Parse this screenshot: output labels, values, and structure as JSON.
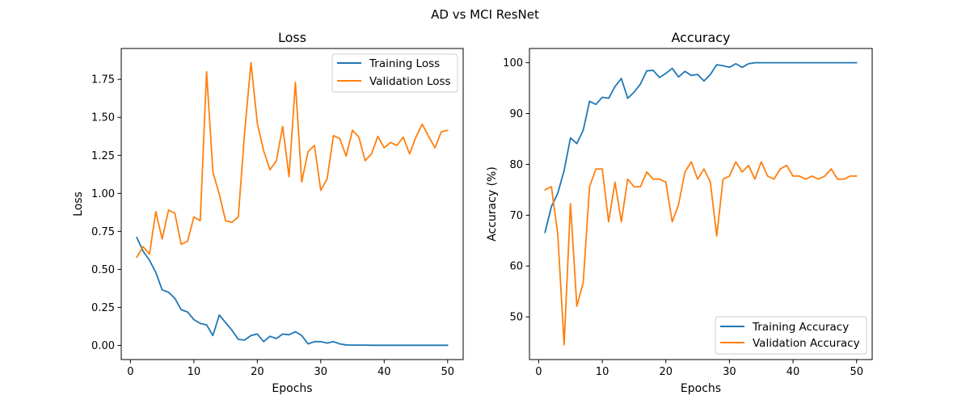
{
  "figure": {
    "suptitle": "AD vs MCI ResNet"
  },
  "chart_data": [
    {
      "type": "line",
      "title": "Loss",
      "xlabel": "Epochs",
      "ylabel": "Loss",
      "xlim": [
        -1.45,
        52.45
      ],
      "ylim": [
        -0.093,
        1.953
      ],
      "xticks": [
        0,
        10,
        20,
        30,
        40,
        50
      ],
      "yticks": [
        0.0,
        0.25,
        0.5,
        0.75,
        1.0,
        1.25,
        1.5,
        1.75
      ],
      "ytick_labels": [
        "0.00",
        "0.25",
        "0.50",
        "0.75",
        "1.00",
        "1.25",
        "1.50",
        "1.75"
      ],
      "legend_position": "top-right",
      "grid": false,
      "x": [
        1,
        2,
        3,
        4,
        5,
        6,
        7,
        8,
        9,
        10,
        11,
        12,
        13,
        14,
        15,
        16,
        17,
        18,
        19,
        20,
        21,
        22,
        23,
        24,
        25,
        26,
        27,
        28,
        29,
        30,
        31,
        32,
        33,
        34,
        35,
        36,
        37,
        38,
        39,
        40,
        41,
        42,
        43,
        44,
        45,
        46,
        47,
        48,
        49,
        50
      ],
      "series": [
        {
          "name": "Training Loss",
          "color": "#1f77b4",
          "values": [
            0.71,
            0.62,
            0.56,
            0.48,
            0.365,
            0.35,
            0.31,
            0.235,
            0.22,
            0.17,
            0.145,
            0.135,
            0.065,
            0.2,
            0.15,
            0.1,
            0.04,
            0.035,
            0.065,
            0.075,
            0.025,
            0.06,
            0.045,
            0.075,
            0.07,
            0.09,
            0.065,
            0.01,
            0.025,
            0.025,
            0.015,
            0.025,
            0.01,
            0.003,
            0.002,
            0.002,
            0.002,
            0.001,
            0.001,
            0.001,
            0.001,
            0.001,
            0.001,
            0.001,
            0.001,
            0.001,
            0.001,
            0.001,
            0.001,
            0.001
          ]
        },
        {
          "name": "Validation Loss",
          "color": "#ff7f0e",
          "values": [
            0.58,
            0.65,
            0.6,
            0.88,
            0.7,
            0.89,
            0.87,
            0.665,
            0.685,
            0.845,
            0.82,
            1.8,
            1.14,
            0.995,
            0.82,
            0.81,
            0.845,
            1.4,
            1.86,
            1.46,
            1.28,
            1.155,
            1.215,
            1.44,
            1.11,
            1.73,
            1.075,
            1.275,
            1.315,
            1.02,
            1.095,
            1.38,
            1.36,
            1.245,
            1.415,
            1.37,
            1.215,
            1.26,
            1.375,
            1.3,
            1.335,
            1.315,
            1.37,
            1.26,
            1.37,
            1.455,
            1.375,
            1.3,
            1.405,
            1.415
          ]
        }
      ]
    },
    {
      "type": "line",
      "title": "Accuracy",
      "xlabel": "Epochs",
      "ylabel": "Accuracy (%)",
      "xlim": [
        -1.45,
        52.45
      ],
      "ylim": [
        41.6,
        102.8
      ],
      "xticks": [
        0,
        10,
        20,
        30,
        40,
        50
      ],
      "yticks": [
        50,
        60,
        70,
        80,
        90,
        100
      ],
      "ytick_labels": [
        "50",
        "60",
        "70",
        "80",
        "90",
        "100"
      ],
      "legend_position": "bottom-right",
      "grid": false,
      "x": [
        1,
        2,
        3,
        4,
        5,
        6,
        7,
        8,
        9,
        10,
        11,
        12,
        13,
        14,
        15,
        16,
        17,
        18,
        19,
        20,
        21,
        22,
        23,
        24,
        25,
        26,
        27,
        28,
        29,
        30,
        31,
        32,
        33,
        34,
        35,
        36,
        37,
        38,
        39,
        40,
        41,
        42,
        43,
        44,
        45,
        46,
        47,
        48,
        49,
        50
      ],
      "series": [
        {
          "name": "Training Accuracy",
          "color": "#1f77b4",
          "values": [
            66.6,
            71.7,
            74.3,
            78.8,
            85.2,
            84.1,
            86.7,
            92.4,
            91.8,
            93.2,
            93.0,
            95.3,
            96.9,
            93.0,
            94.2,
            95.8,
            98.4,
            98.5,
            97.1,
            97.9,
            98.9,
            97.2,
            98.3,
            97.5,
            97.7,
            96.4,
            97.7,
            99.6,
            99.4,
            99.1,
            99.8,
            99.1,
            99.8,
            100,
            100,
            100,
            100,
            100,
            100,
            100,
            100,
            100,
            100,
            100,
            100,
            100,
            100,
            100,
            100,
            100
          ]
        },
        {
          "name": "Validation Accuracy",
          "color": "#ff7f0e",
          "values": [
            75.0,
            75.6,
            66.3,
            44.5,
            72.3,
            52.1,
            56.7,
            75.6,
            79.1,
            79.1,
            68.7,
            76.5,
            68.7,
            77.1,
            75.6,
            75.6,
            78.5,
            77.1,
            77.1,
            76.5,
            68.7,
            72.1,
            78.5,
            80.5,
            77.1,
            79.1,
            76.5,
            65.9,
            77.1,
            77.7,
            80.5,
            78.5,
            79.8,
            77.1,
            80.5,
            77.7,
            77.1,
            79.1,
            79.8,
            77.7,
            77.7,
            77.1,
            77.7,
            77.1,
            77.7,
            79.1,
            77.1,
            77.1,
            77.7,
            77.7
          ]
        }
      ]
    }
  ]
}
